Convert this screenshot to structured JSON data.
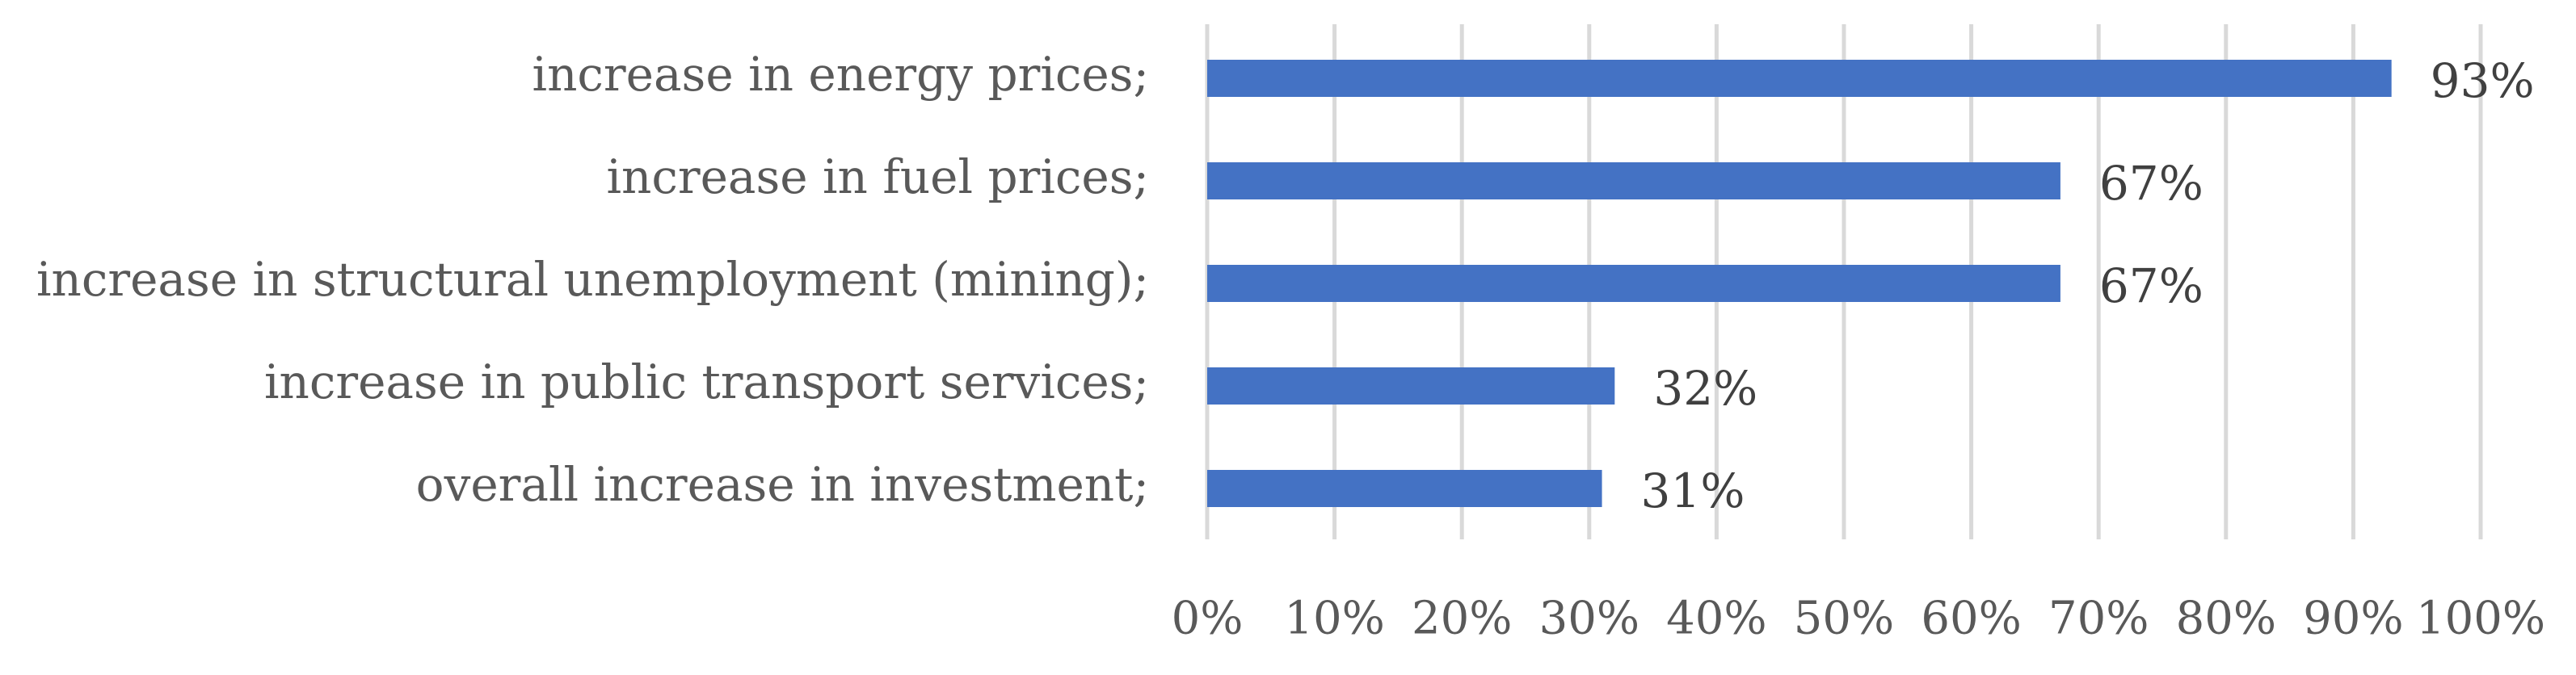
{
  "chart_data": {
    "type": "bar",
    "orientation": "horizontal",
    "categories": [
      "increase in energy prices;",
      "increase in fuel prices;",
      "increase in structural unemployment (mining);",
      "increase in public transport services;",
      "overall increase in investment;"
    ],
    "values": [
      93,
      67,
      67,
      32,
      31
    ],
    "data_labels": [
      "93%",
      "67%",
      "67%",
      "32%",
      "31%"
    ],
    "xlim": [
      0,
      100
    ],
    "x_ticks": [
      0,
      10,
      20,
      30,
      40,
      50,
      60,
      70,
      80,
      90,
      100
    ],
    "x_tick_labels": [
      "0%",
      "10%",
      "20%",
      "30%",
      "40%",
      "50%",
      "60%",
      "70%",
      "80%",
      "90%",
      "100%"
    ],
    "grid": "vertical",
    "legend": "none",
    "bar_color": "#4472C4",
    "gridline_color": "#D9D9D9"
  }
}
